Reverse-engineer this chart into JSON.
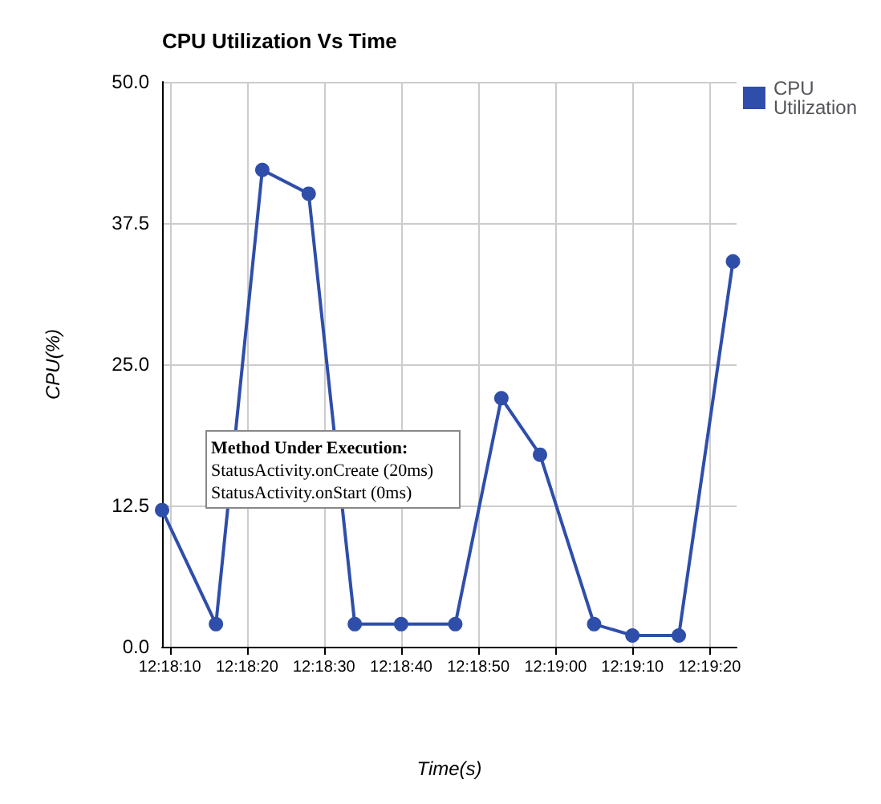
{
  "chart_data": {
    "type": "line",
    "title": "CPU Utilization Vs Time",
    "xlabel": "Time(s)",
    "ylabel": "CPU(%)",
    "x": [
      12.3025,
      12.30444,
      12.30611,
      12.30778,
      12.30944,
      12.31111,
      12.31306,
      12.31472,
      12.31611,
      12.31806,
      12.31944,
      12.32111,
      12.32306
    ],
    "series": [
      {
        "name": "CPU Utilization",
        "color": "#2f4eaa",
        "values": [
          12.1,
          2,
          42.2,
          40.1,
          2,
          2,
          2,
          22,
          17,
          2,
          1,
          1,
          34.1
        ]
      }
    ],
    "xlim": [
      12.3025,
      12.32319
    ],
    "xticks": [
      {
        "value": 12.30278,
        "label": "12:18:10"
      },
      {
        "value": 12.30556,
        "label": "12:18:20"
      },
      {
        "value": 12.30833,
        "label": "12:18:30"
      },
      {
        "value": 12.31111,
        "label": "12:18:40"
      },
      {
        "value": 12.31389,
        "label": "12:18:50"
      },
      {
        "value": 12.31667,
        "label": "12:19:00"
      },
      {
        "value": 12.31944,
        "label": "12:19:10"
      },
      {
        "value": 12.32222,
        "label": "12:19:20"
      }
    ],
    "ylim": [
      0,
      50
    ],
    "yticks": [
      {
        "value": 0,
        "label": "0.0"
      },
      {
        "value": 12.5,
        "label": "12.5"
      },
      {
        "value": 25,
        "label": "25.0"
      },
      {
        "value": 37.5,
        "label": "37.5"
      },
      {
        "value": 50,
        "label": "50.0"
      }
    ],
    "grid": true,
    "legend": "top right",
    "marker": "circle",
    "line_style": "solid",
    "annotations": [
      "Method Under Execution:\nStatusActivity.onCreate (20ms)\nStatusActivity.onStart (0ms)"
    ]
  }
}
